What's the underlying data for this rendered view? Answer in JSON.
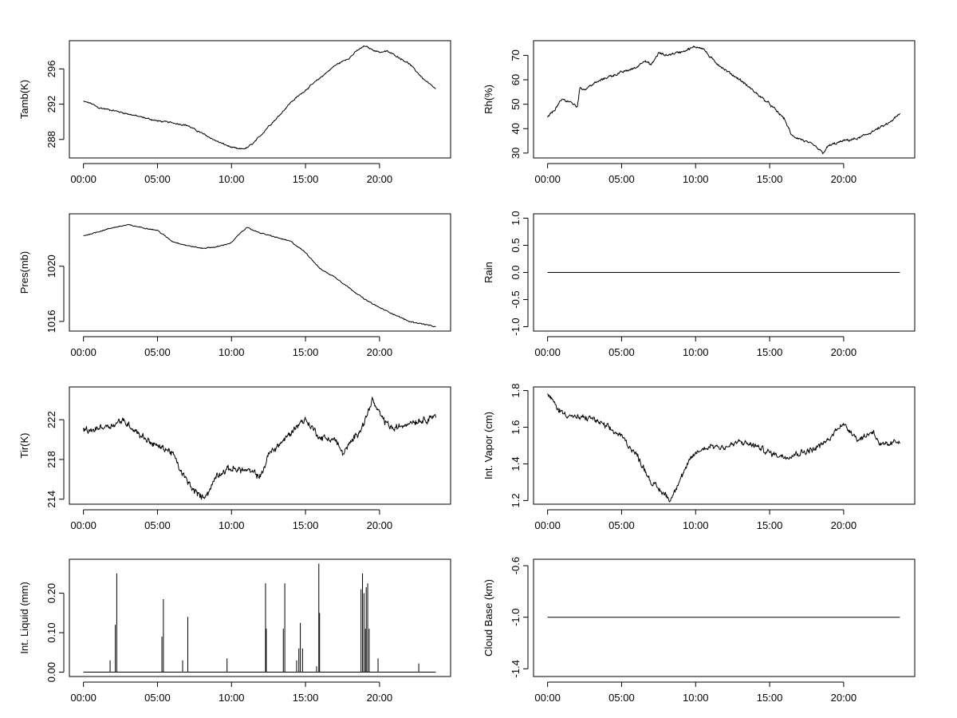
{
  "figure": {
    "background": "#ffffff",
    "line_color": "#000000"
  },
  "chart_data": [
    {
      "type": "line",
      "ylabel": "Tamb(K)",
      "ylim": [
        285.9,
        299.2
      ],
      "yticks": [
        288,
        292,
        296
      ],
      "ytick_labels": [
        "288",
        "292",
        "296"
      ],
      "x_hours": [
        0.0,
        0.5,
        1.0,
        2.0,
        3.0,
        4.0,
        5.0,
        6.0,
        7.0,
        8.0,
        9.0,
        10.0,
        10.5,
        11.0,
        11.5,
        12.0,
        12.5,
        13.0,
        14.0,
        15.0,
        16.0,
        17.0,
        18.0,
        18.5,
        19.0,
        19.5,
        20.0,
        20.5,
        21.0,
        22.0,
        23.0,
        23.8
      ],
      "y": [
        292.3,
        292.1,
        291.6,
        291.3,
        290.9,
        290.5,
        290.1,
        289.9,
        289.6,
        288.7,
        287.8,
        287.1,
        286.9,
        287.0,
        287.6,
        288.5,
        289.5,
        290.3,
        292.2,
        293.6,
        295.0,
        296.4,
        297.3,
        298.1,
        298.6,
        298.2,
        297.9,
        298.0,
        297.6,
        296.6,
        294.8,
        293.7
      ],
      "noise": 0.12,
      "xlabel": "",
      "grid": false
    },
    {
      "type": "line",
      "ylabel": "Rh(%)",
      "ylim": [
        28,
        76
      ],
      "yticks": [
        30,
        40,
        50,
        60,
        70
      ],
      "ytick_labels": [
        "30",
        "40",
        "50",
        "60",
        "70"
      ],
      "x_hours": [
        0.0,
        0.5,
        1.0,
        1.5,
        2.0,
        2.2,
        2.5,
        3.0,
        4.0,
        5.0,
        6.0,
        6.5,
        7.0,
        7.5,
        8.0,
        9.0,
        10.0,
        10.5,
        11.0,
        12.0,
        13.0,
        14.0,
        15.0,
        16.0,
        16.5,
        17.0,
        18.0,
        18.6,
        19.0,
        20.0,
        21.0,
        22.0,
        23.0,
        23.8
      ],
      "y": [
        44.5,
        48.0,
        52.0,
        51.0,
        49.0,
        57.0,
        56.0,
        58.0,
        61.0,
        63.0,
        65.0,
        68.0,
        66.0,
        71.0,
        70.0,
        71.5,
        73.5,
        73.0,
        69.0,
        64.0,
        60.0,
        55.0,
        50.0,
        44.0,
        37.0,
        36.0,
        33.0,
        30.0,
        33.0,
        35.0,
        36.0,
        39.0,
        42.0,
        46.0
      ],
      "noise": 0.7,
      "xlabel": "",
      "grid": false
    },
    {
      "type": "line",
      "ylabel": "Pres(mb)",
      "ylim": [
        1015.3,
        1023.8
      ],
      "yticks": [
        1016,
        1020
      ],
      "ytick_labels": [
        "1016",
        "1020"
      ],
      "x_hours": [
        0.0,
        1.0,
        2.0,
        3.0,
        4.0,
        5.0,
        5.5,
        6.0,
        7.0,
        8.0,
        9.0,
        10.0,
        10.5,
        11.0,
        11.5,
        12.0,
        13.0,
        14.0,
        15.0,
        16.0,
        17.0,
        18.0,
        19.0,
        20.0,
        21.0,
        22.0,
        23.0,
        23.8
      ],
      "y": [
        1022.2,
        1022.5,
        1022.8,
        1023.0,
        1022.8,
        1022.6,
        1022.2,
        1021.8,
        1021.5,
        1021.3,
        1021.4,
        1021.7,
        1022.3,
        1022.8,
        1022.6,
        1022.4,
        1022.1,
        1021.8,
        1021.0,
        1019.8,
        1019.2,
        1018.4,
        1017.6,
        1017.0,
        1016.5,
        1016.0,
        1015.8,
        1015.6
      ],
      "noise": 0.05,
      "xlabel": "",
      "grid": false
    },
    {
      "type": "line",
      "ylabel": "Rain",
      "ylim": [
        -1.08,
        1.08
      ],
      "yticks": [
        -1.0,
        -0.5,
        0.0,
        0.5,
        1.0
      ],
      "ytick_labels": [
        "-1.0",
        "-0.5",
        "0.0",
        "0.5",
        "1.0"
      ],
      "x_hours": [
        0.0,
        23.8
      ],
      "y": [
        0.0,
        0.0
      ],
      "noise": 0.0,
      "xlabel": "",
      "grid": false
    },
    {
      "type": "line",
      "ylabel": "Tir(K)",
      "ylim": [
        213.5,
        225.3
      ],
      "yticks": [
        214,
        218,
        222
      ],
      "ytick_labels": [
        "214",
        "218",
        "222"
      ],
      "x_hours": [
        0.0,
        0.5,
        1.0,
        2.0,
        2.5,
        3.0,
        4.0,
        5.0,
        5.5,
        6.0,
        6.5,
        7.0,
        7.5,
        8.0,
        8.5,
        9.0,
        10.0,
        11.0,
        12.0,
        12.5,
        13.0,
        14.0,
        14.5,
        15.0,
        16.0,
        17.0,
        17.5,
        18.0,
        19.0,
        19.5,
        20.0,
        20.5,
        21.0,
        22.0,
        23.0,
        23.8
      ],
      "y": [
        221.0,
        220.8,
        221.2,
        221.5,
        221.9,
        221.6,
        220.3,
        219.3,
        219.1,
        218.7,
        217.0,
        215.8,
        214.8,
        214.2,
        214.8,
        216.5,
        217.1,
        216.9,
        216.3,
        218.5,
        219.2,
        220.6,
        221.6,
        222.0,
        220.2,
        220.0,
        218.6,
        219.5,
        221.8,
        224.0,
        222.5,
        221.6,
        221.0,
        221.8,
        222.0,
        222.5
      ],
      "noise": 0.45,
      "xlabel": "",
      "grid": false
    },
    {
      "type": "line",
      "ylabel": "Int. Vapor (cm)",
      "ylim": [
        1.18,
        1.82
      ],
      "yticks": [
        1.2,
        1.4,
        1.6,
        1.8
      ],
      "ytick_labels": [
        "1.2",
        "1.4",
        "1.6",
        "1.8"
      ],
      "x_hours": [
        0.0,
        0.3,
        0.7,
        1.0,
        2.0,
        3.0,
        4.0,
        5.0,
        6.0,
        6.5,
        7.0,
        7.5,
        8.0,
        8.3,
        8.7,
        9.5,
        10.0,
        11.0,
        12.0,
        13.0,
        14.0,
        15.0,
        16.0,
        17.0,
        18.0,
        19.0,
        19.8,
        20.5,
        21.0,
        22.0,
        22.5,
        23.0,
        23.8
      ],
      "y": [
        1.77,
        1.75,
        1.7,
        1.68,
        1.65,
        1.65,
        1.6,
        1.55,
        1.45,
        1.38,
        1.3,
        1.26,
        1.23,
        1.2,
        1.28,
        1.4,
        1.46,
        1.5,
        1.49,
        1.52,
        1.5,
        1.46,
        1.44,
        1.46,
        1.48,
        1.53,
        1.62,
        1.58,
        1.53,
        1.58,
        1.5,
        1.5,
        1.53
      ],
      "noise": 0.022,
      "xlabel": "",
      "grid": false
    },
    {
      "type": "spikes",
      "ylabel": "Int. Liquid (mm)",
      "ylim": [
        -0.011,
        0.286
      ],
      "yticks": [
        0.0,
        0.1,
        0.2
      ],
      "ytick_labels": [
        "0.00",
        "0.10",
        "0.20"
      ],
      "baseline": 0.0,
      "x_end_hours": 23.8,
      "spikes": [
        {
          "x": 1.8,
          "y": 0.03
        },
        {
          "x": 2.15,
          "y": 0.12
        },
        {
          "x": 2.25,
          "y": 0.25
        },
        {
          "x": 5.3,
          "y": 0.09
        },
        {
          "x": 5.4,
          "y": 0.185
        },
        {
          "x": 6.7,
          "y": 0.03
        },
        {
          "x": 7.05,
          "y": 0.14
        },
        {
          "x": 9.7,
          "y": 0.035
        },
        {
          "x": 12.3,
          "y": 0.225
        },
        {
          "x": 12.35,
          "y": 0.11
        },
        {
          "x": 13.5,
          "y": 0.11
        },
        {
          "x": 13.6,
          "y": 0.225
        },
        {
          "x": 14.4,
          "y": 0.03
        },
        {
          "x": 14.55,
          "y": 0.06
        },
        {
          "x": 14.65,
          "y": 0.125
        },
        {
          "x": 14.8,
          "y": 0.06
        },
        {
          "x": 15.75,
          "y": 0.015
        },
        {
          "x": 15.9,
          "y": 0.275
        },
        {
          "x": 15.95,
          "y": 0.15
        },
        {
          "x": 18.75,
          "y": 0.21
        },
        {
          "x": 18.85,
          "y": 0.25
        },
        {
          "x": 18.95,
          "y": 0.2
        },
        {
          "x": 19.05,
          "y": 0.11
        },
        {
          "x": 19.1,
          "y": 0.215
        },
        {
          "x": 19.2,
          "y": 0.225
        },
        {
          "x": 19.3,
          "y": 0.11
        },
        {
          "x": 19.9,
          "y": 0.035
        },
        {
          "x": 22.65,
          "y": 0.022
        }
      ],
      "xlabel": "",
      "grid": false
    },
    {
      "type": "line",
      "ylabel": "Cloud Base (km)",
      "ylim": [
        -1.46,
        -0.55
      ],
      "yticks": [
        -1.4,
        -1.0,
        -0.6
      ],
      "ytick_labels": [
        "-1.4",
        "-1.0",
        "-0.6"
      ],
      "x_hours": [
        0.0,
        23.8
      ],
      "y": [
        -1.0,
        -1.0
      ],
      "noise": 0.0,
      "xlabel": "",
      "grid": false
    }
  ],
  "x_axis": {
    "xlim_hours": [
      -0.95,
      24.8
    ],
    "ticks_hours": [
      0,
      5,
      10,
      15,
      20
    ],
    "tick_labels": [
      "00:00",
      "05:00",
      "10:00",
      "15:00",
      "20:00"
    ]
  }
}
